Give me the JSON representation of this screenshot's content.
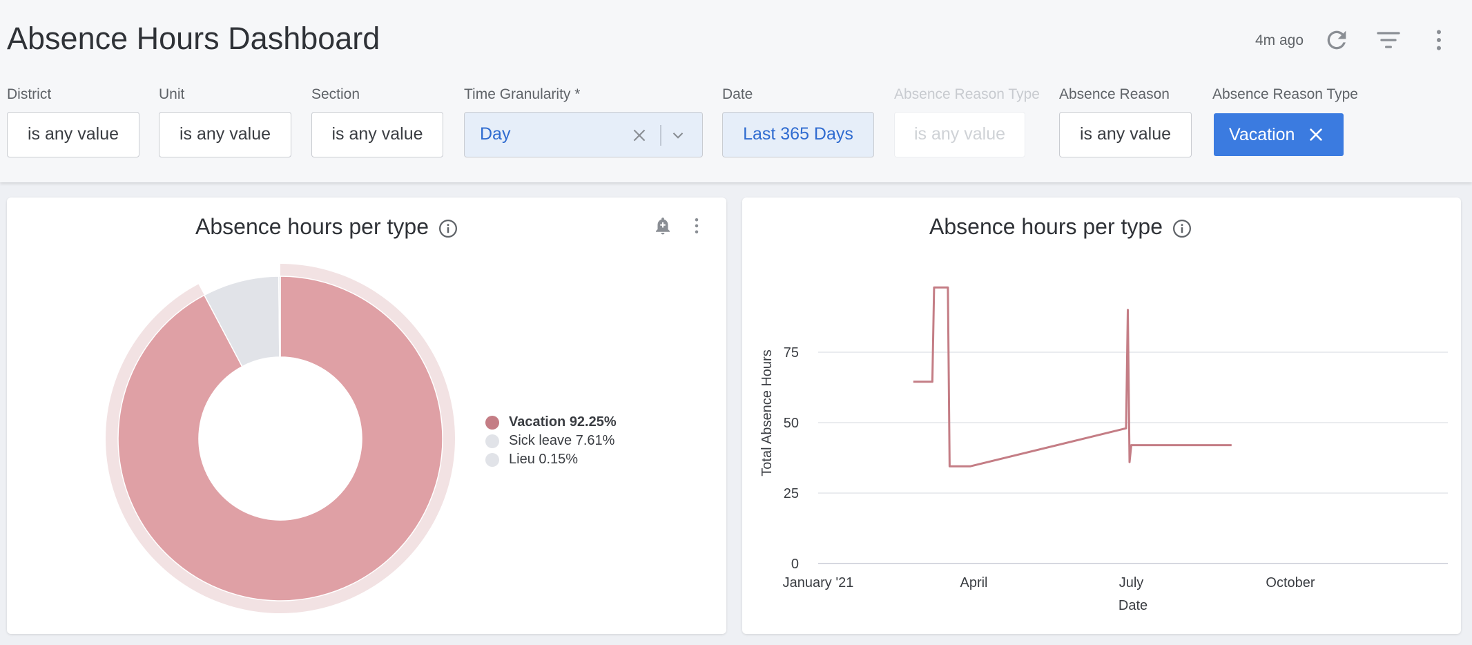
{
  "header": {
    "title": "Absence Hours Dashboard",
    "updated": "4m ago",
    "icons": {
      "refresh": "refresh-icon",
      "filter": "filter-icon",
      "more": "more-vertical-icon"
    }
  },
  "filters": [
    {
      "label": "District",
      "value": "is any value"
    },
    {
      "label": "Unit",
      "value": "is any value"
    },
    {
      "label": "Section",
      "value": "is any value"
    },
    {
      "label": "Time Granularity *",
      "value": "Day"
    },
    {
      "label": "Date",
      "value": "Last 365 Days"
    },
    {
      "label": "Absence Reason Type",
      "value": "is any value",
      "disabled": true
    },
    {
      "label": "Absence Reason",
      "value": "is any value"
    },
    {
      "label": "Absence Reason Type",
      "value": "Vacation"
    }
  ],
  "donut_card": {
    "title": "Absence hours per type",
    "legend": [
      {
        "label": "Vacation 92.25%",
        "color": "#c47d85"
      },
      {
        "label": "Sick leave 7.61%",
        "color": "#e1e3e8"
      },
      {
        "label": "Lieu 0.15%",
        "color": "#e1e3e8"
      }
    ]
  },
  "line_card": {
    "title": "Absence hours per type"
  },
  "chart_data": [
    {
      "type": "pie",
      "title": "Absence hours per type",
      "categories": [
        "Vacation",
        "Sick leave",
        "Lieu"
      ],
      "values": [
        92.25,
        7.61,
        0.15
      ],
      "colors": [
        "#dfa0a5",
        "#e1e3e8",
        "#e1e3e8"
      ],
      "highlighted": "Vacation",
      "legend_position": "right"
    },
    {
      "type": "line",
      "title": "Absence hours per type",
      "xlabel": "Date",
      "ylabel": "Total Absence Hours",
      "x_ticks": [
        "January '21",
        "April",
        "July",
        "October"
      ],
      "y_ticks": [
        0,
        25,
        50,
        75
      ],
      "ylim": [
        0,
        100
      ],
      "xlim": [
        "2021-01-01",
        "2021-12-31"
      ],
      "grid": true,
      "color": "#c47d85",
      "series": [
        {
          "x": [
            "2021-02-25",
            "2021-03-08",
            "2021-03-09",
            "2021-03-17",
            "2021-03-18",
            "2021-03-23",
            "2021-03-30",
            "2021-06-28",
            "2021-06-29",
            "2021-06-30",
            "2021-07-01",
            "2021-07-02",
            "2021-08-28"
          ],
          "values": [
            64.5,
            64.5,
            98,
            98,
            34.5,
            34.5,
            34.5,
            48,
            90,
            36,
            42,
            42,
            42
          ]
        }
      ]
    }
  ]
}
